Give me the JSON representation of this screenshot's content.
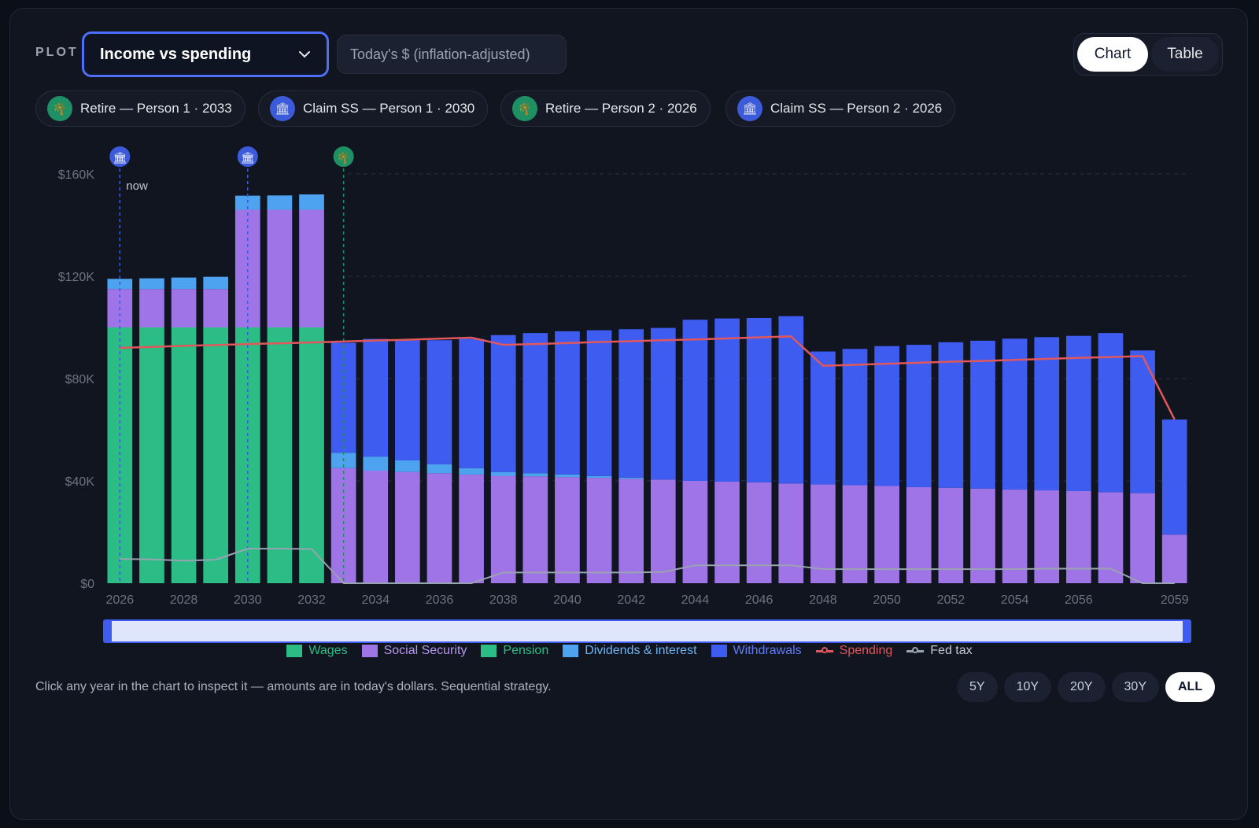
{
  "header": {
    "plot_label": "PLOT",
    "plot_select": "Income vs spending",
    "units": "Today's $ (inflation-adjusted)",
    "view_toggle": [
      "Chart",
      "Table"
    ],
    "active_view": "Chart"
  },
  "milestones": [
    {
      "label": "Retire — Person 1 · 2033",
      "icon": "palm-tree-icon",
      "color": "#1f8f64"
    },
    {
      "label": "Claim SS — Person 1 · 2030",
      "icon": "bank-icon",
      "color": "#3b5bdb"
    },
    {
      "label": "Retire — Person 2 · 2026",
      "icon": "palm-tree-icon",
      "color": "#1f8f64"
    },
    {
      "label": "Claim SS — Person 2 · 2026",
      "icon": "bank-icon",
      "color": "#3b5bdb"
    }
  ],
  "chart_data": {
    "type": "bar",
    "stacked": true,
    "x": [
      2026,
      2027,
      2028,
      2029,
      2030,
      2031,
      2032,
      2033,
      2034,
      2035,
      2036,
      2037,
      2038,
      2039,
      2040,
      2041,
      2042,
      2043,
      2044,
      2045,
      2046,
      2047,
      2048,
      2049,
      2050,
      2051,
      2052,
      2053,
      2054,
      2055,
      2056,
      2057,
      2058,
      2059
    ],
    "xticks": [
      "2026",
      "2028",
      "2030",
      "2032",
      "2034",
      "2036",
      "2038",
      "2040",
      "2042",
      "2044",
      "2046",
      "2048",
      "2050",
      "2052",
      "2054",
      "2056",
      "2059"
    ],
    "yticks": [
      "$0",
      "$40K",
      "$80K",
      "$120K",
      "$160K"
    ],
    "ylim": [
      0,
      160000
    ],
    "now_label": "now",
    "series": [
      {
        "name": "Wages",
        "color": "#2bbd85",
        "values": [
          100000,
          100000,
          100000,
          100000,
          100000,
          100000,
          100000,
          0,
          0,
          0,
          0,
          0,
          0,
          0,
          0,
          0,
          0,
          0,
          0,
          0,
          0,
          0,
          0,
          0,
          0,
          0,
          0,
          0,
          0,
          0,
          0,
          0,
          0,
          0
        ]
      },
      {
        "name": "Social Security",
        "color": "#9f74e6",
        "values": [
          15000,
          15000,
          15000,
          15000,
          46000,
          46000,
          46000,
          45000,
          44000,
          43500,
          43000,
          42500,
          42000,
          41800,
          41500,
          41200,
          40800,
          40500,
          40000,
          39700,
          39400,
          39000,
          38600,
          38300,
          38000,
          37600,
          37300,
          37000,
          36600,
          36300,
          36000,
          35600,
          35200,
          19000
        ]
      },
      {
        "name": "Pension",
        "color": "#2bbd85",
        "values": [
          0,
          0,
          0,
          0,
          0,
          0,
          0,
          0,
          0,
          0,
          0,
          0,
          0,
          0,
          0,
          0,
          0,
          0,
          0,
          0,
          0,
          0,
          0,
          0,
          0,
          0,
          0,
          0,
          0,
          0,
          0,
          0,
          0,
          0
        ]
      },
      {
        "name": "Dividends & interest",
        "color": "#4da3f0",
        "values": [
          4000,
          4200,
          4500,
          4800,
          5500,
          5600,
          6000,
          6000,
          5500,
          4500,
          3500,
          2500,
          1500,
          1200,
          1000,
          700,
          500,
          0,
          0,
          0,
          0,
          0,
          0,
          0,
          0,
          0,
          0,
          0,
          0,
          0,
          0,
          0,
          0,
          0
        ]
      },
      {
        "name": "Withdrawals",
        "color": "#3f5cf0",
        "values": [
          0,
          0,
          0,
          0,
          0,
          0,
          0,
          43000,
          46000,
          47000,
          48500,
          50500,
          53500,
          54800,
          56000,
          57000,
          58000,
          59300,
          63000,
          63800,
          64300,
          65400,
          52000,
          53300,
          54700,
          55600,
          56900,
          57800,
          59000,
          59900,
          60700,
          62200,
          55800,
          45000
        ]
      }
    ],
    "lines": [
      {
        "name": "Spending",
        "color": "#e0585b",
        "values": [
          92000,
          92400,
          92800,
          93100,
          93500,
          93800,
          94100,
          94500,
          94900,
          95200,
          95600,
          96000,
          93200,
          93500,
          93900,
          94300,
          94600,
          95000,
          95300,
          95700,
          96100,
          96500,
          85000,
          85400,
          85800,
          86200,
          86600,
          86900,
          87300,
          87700,
          88100,
          88400,
          88800,
          64000
        ]
      },
      {
        "name": "Fed tax",
        "color": "#9aa3b2",
        "values": [
          9500,
          9300,
          8800,
          9200,
          13500,
          13500,
          13400,
          0,
          0,
          0,
          0,
          0,
          4200,
          4200,
          4200,
          4200,
          4200,
          4400,
          7000,
          7000,
          7000,
          7000,
          5500,
          5500,
          5500,
          5500,
          5500,
          5500,
          5500,
          5700,
          5700,
          5700,
          0,
          0
        ]
      }
    ],
    "markers": [
      {
        "year": 2026,
        "icon": "bank-icon",
        "color": "#3b5bdb"
      },
      {
        "year": 2030,
        "icon": "bank-icon",
        "color": "#3b5bdb"
      },
      {
        "year": 2033,
        "icon": "palm-tree-icon",
        "color": "#1f8f64"
      }
    ],
    "legend": [
      "Wages",
      "Social Security",
      "Pension",
      "Dividends & interest",
      "Withdrawals",
      "Spending",
      "Fed tax"
    ],
    "legend_placement": "bottom"
  },
  "footer": {
    "note": "Click any year in the chart to inspect it — amounts are in today's dollars. Sequential strategy.",
    "ranges": [
      "5Y",
      "10Y",
      "20Y",
      "30Y",
      "ALL"
    ],
    "active_range": "ALL"
  },
  "colors": {
    "accent": "#4f6ef7",
    "legend_text": {
      "Wages": "#2bbd85",
      "Social Security": "#b596f0",
      "Pension": "#2bbd85",
      "Dividends & interest": "#6db4f3",
      "Withdrawals": "#5f7cf5",
      "Spending": "#e0585b",
      "Fed tax": "#c3c9d4"
    }
  }
}
